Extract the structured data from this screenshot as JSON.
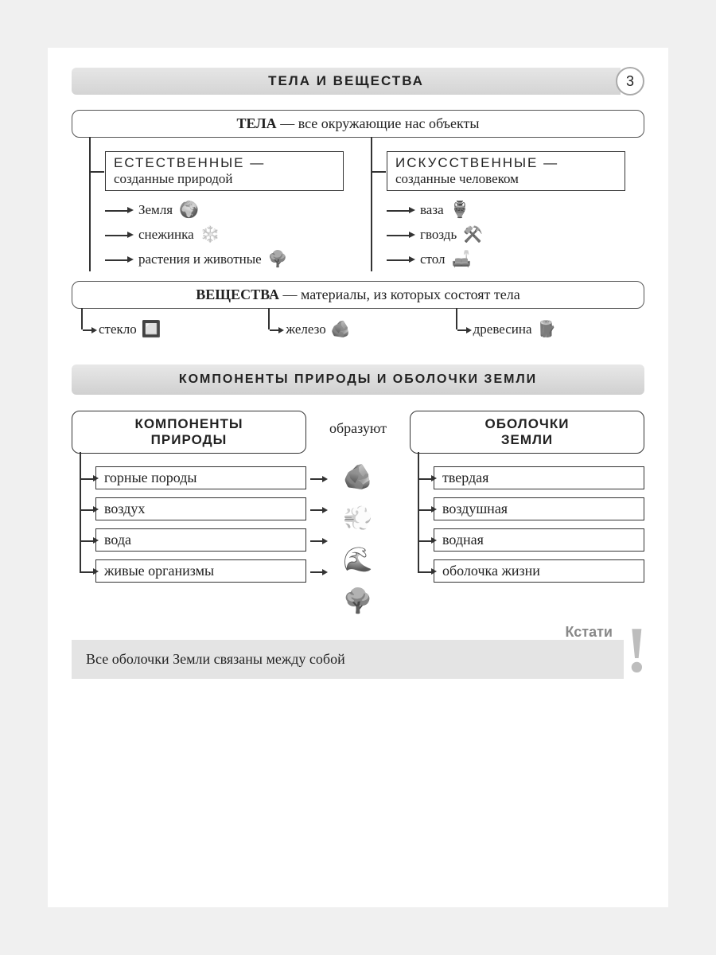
{
  "page_number": "3",
  "title1": "ТЕЛА И ВЕЩЕСТВА",
  "tela_def_bold": "ТЕЛА",
  "tela_def_rest": " — все окружающие нас объекты",
  "branch_left": {
    "title": "ЕСТЕСТВЕННЫЕ —",
    "sub": "созданные природой",
    "items": [
      "Земля",
      "снежинка",
      "растения и животные"
    ],
    "icons": [
      "🌍",
      "❄️",
      "🌳"
    ]
  },
  "branch_right": {
    "title": "ИСКУССТВЕННЫЕ —",
    "sub": "созданные человеком",
    "items": [
      "ваза",
      "гвоздь",
      "стол"
    ],
    "icons": [
      "🏺",
      "⚒️",
      "🛋️"
    ]
  },
  "subst_def_bold": "ВЕЩЕСТВА",
  "subst_def_rest": " — материалы, из которых состоят тела",
  "subst_items": [
    "стекло",
    "железо",
    "древесина"
  ],
  "subst_icons": [
    "🔲",
    "🪨",
    "🪵"
  ],
  "title2": "КОМПОНЕНТЫ ПРИРОДЫ И ОБОЛОЧКИ ЗЕМЛИ",
  "col_left_head": "КОМПОНЕНТЫ<br>ПРИРОДЫ",
  "mid_word": "образуют",
  "col_right_head": "ОБОЛОЧКИ<br>ЗЕМЛИ",
  "left_rows": [
    "горные породы",
    "воздух",
    "вода",
    "живые организмы"
  ],
  "mid_icons": [
    "🪨",
    "💨",
    "🌊",
    "🌳"
  ],
  "right_rows": [
    "твердая",
    "воздушная",
    "водная",
    "оболочка жизни"
  ],
  "note_label": "Кстати",
  "note_text": "Все оболочки Земли связаны между собой",
  "colors": {
    "border": "#333333",
    "header_grad_top": "#e6e6e6",
    "header_grad_bot": "#d4d4d4",
    "note_bg": "#e4e4e4",
    "excl": "#bdbdbd",
    "text": "#222222"
  }
}
